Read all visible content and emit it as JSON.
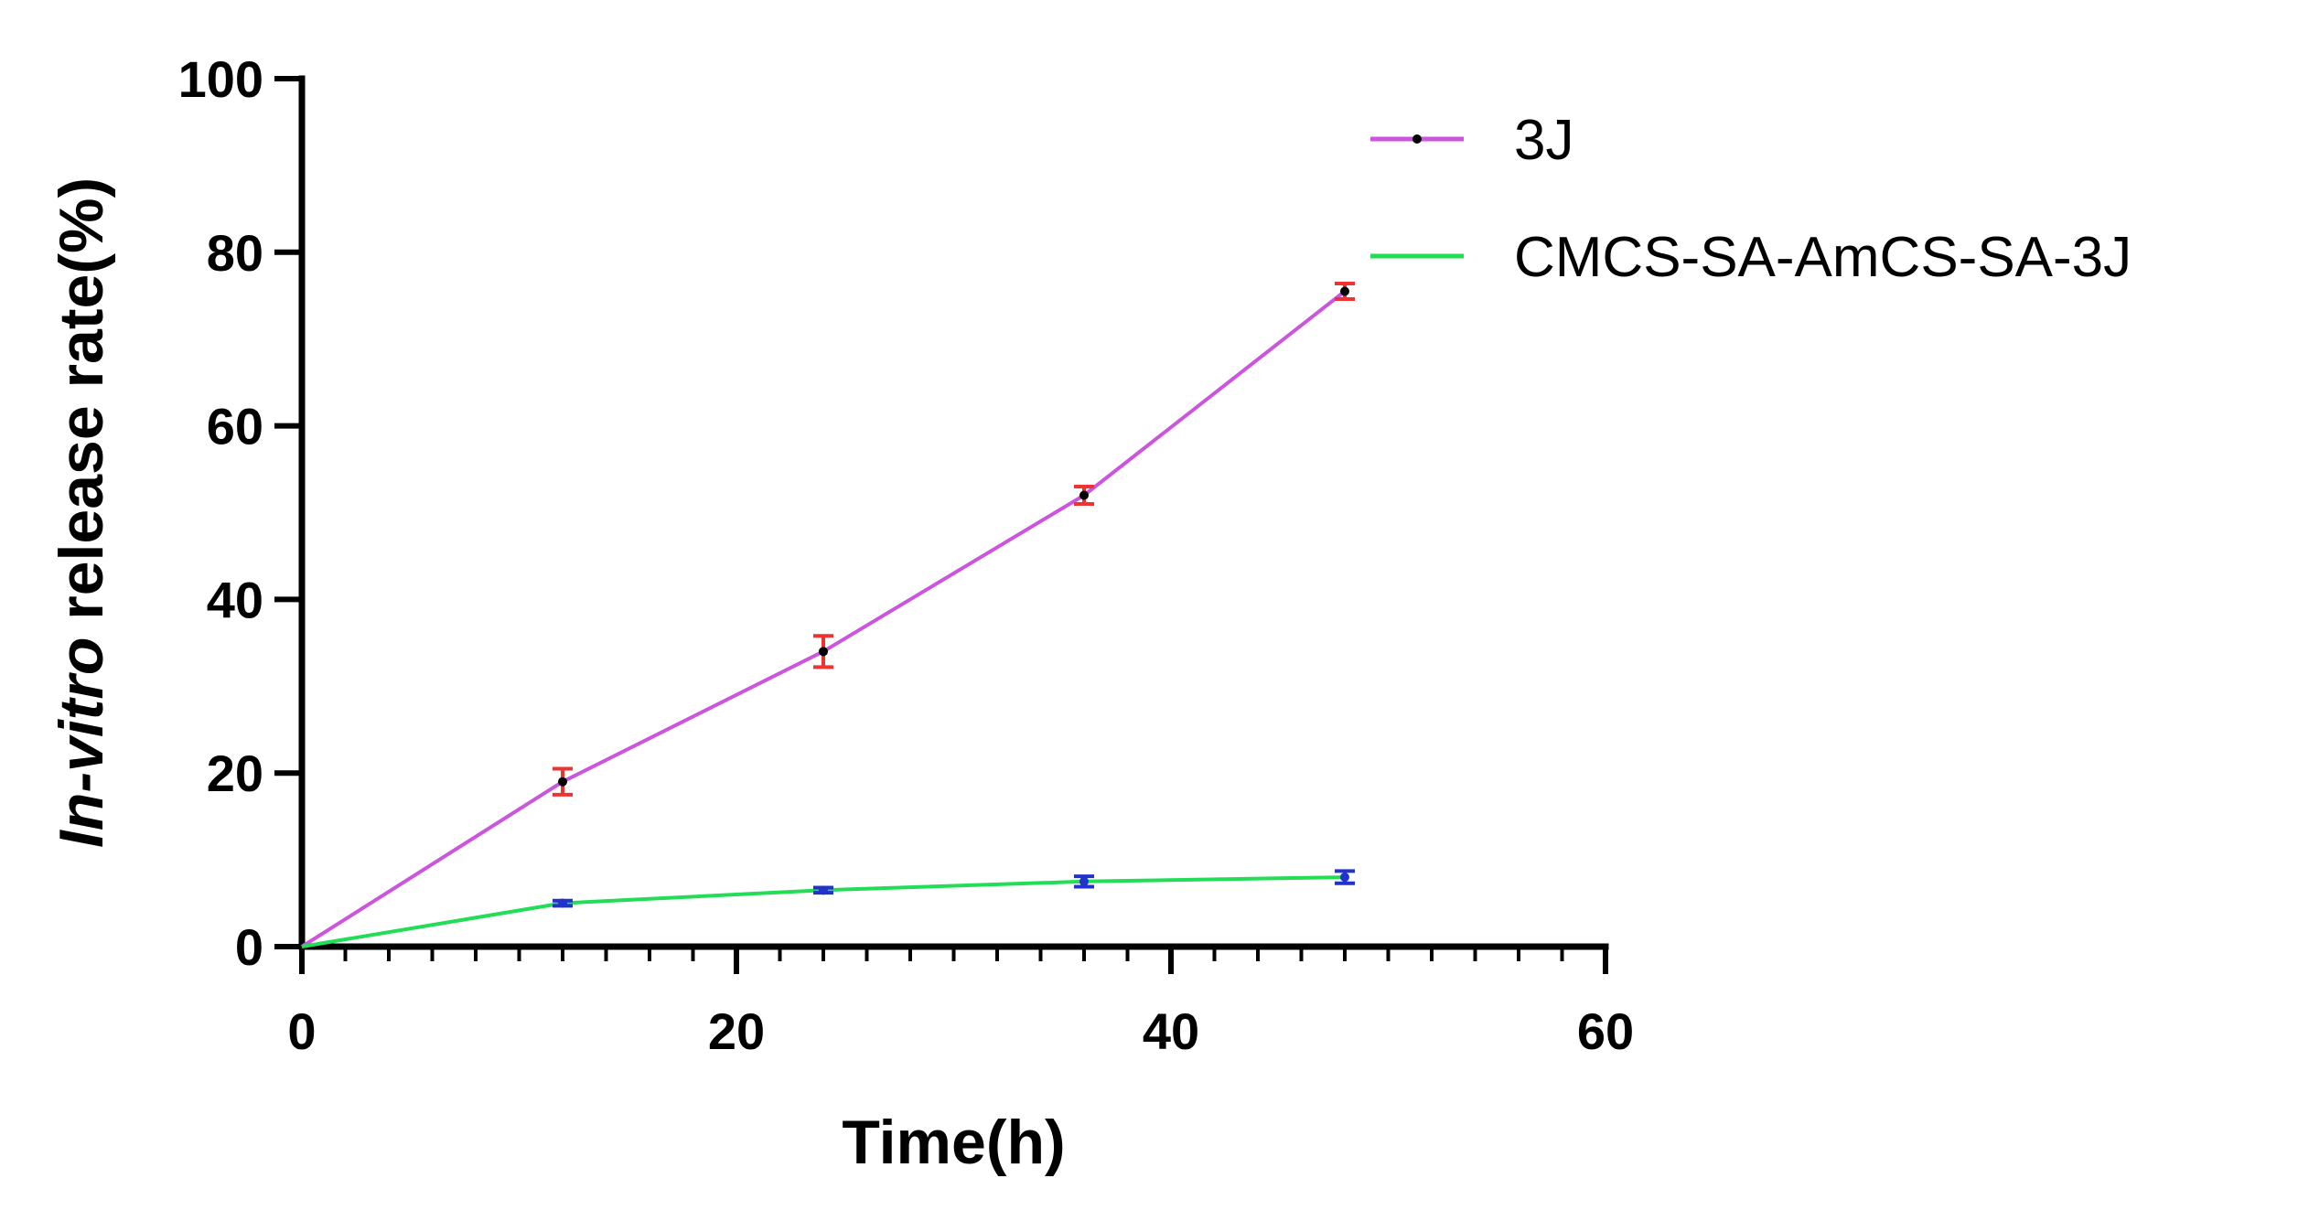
{
  "chart_data": {
    "type": "line",
    "title": "",
    "xlabel": "Time(h)",
    "ylabel_italic": "In-vitro",
    "ylabel_rest": " release rate(%)",
    "xlim": [
      0,
      60
    ],
    "ylim": [
      0,
      100
    ],
    "x_ticks": [
      0,
      20,
      40,
      60
    ],
    "x_tick_labels": [
      "0",
      "20",
      "40",
      "60"
    ],
    "x_minor_step": 2,
    "y_ticks": [
      0,
      20,
      40,
      60,
      80,
      100
    ],
    "y_tick_labels": [
      "0",
      "20",
      "40",
      "60",
      "80",
      "100"
    ],
    "grid": false,
    "legend_position": "top-right",
    "series": [
      {
        "name": "3J",
        "color": "#cc55dd",
        "error_color": "#ee3333",
        "marker_color": "#000000",
        "x": [
          0,
          12,
          24,
          36,
          48
        ],
        "values": [
          0,
          19,
          34,
          52,
          75.5
        ],
        "errors": [
          0,
          1.5,
          1.8,
          1.0,
          0.9
        ]
      },
      {
        "name": "CMCS-SA-AmCS-SA-3J",
        "color": "#22dd55",
        "error_color": "#2233cc",
        "marker_color": "#2233cc",
        "x": [
          0,
          12,
          24,
          36,
          48
        ],
        "values": [
          0,
          5,
          6.5,
          7.5,
          8
        ],
        "errors": [
          0,
          0.3,
          0.3,
          0.6,
          0.7
        ]
      }
    ]
  }
}
